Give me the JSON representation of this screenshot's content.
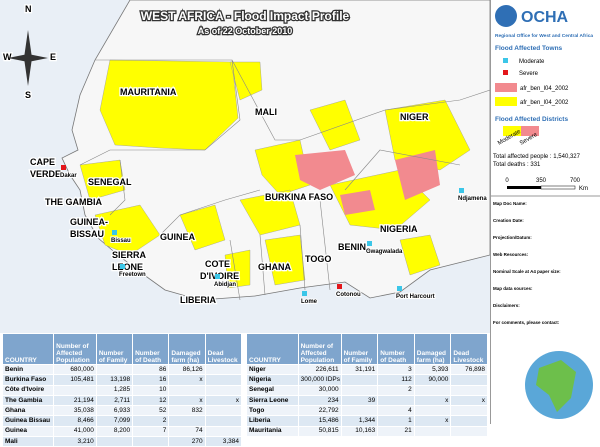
{
  "header": {
    "title": "WEST AFRICA",
    "subtitle": " - Flood Impact Profile",
    "date": "As of 22 October 2010"
  },
  "logo": {
    "name": "OCHA",
    "office": "Regional Office for West and Central Africa"
  },
  "legend": {
    "towns_title": "Flood Affected Towns",
    "moderate": "Moderate",
    "severe": "Severe",
    "layer1": "afr_ben_l04_2002",
    "layer2": "afr_ben_l04_2002",
    "districts_title": "Flood Affected Districts",
    "district_moderate": "Moderate",
    "district_severe": "Severe"
  },
  "totals": {
    "people": "Total affected people : 1,540,327",
    "deaths": "Total deaths : 331"
  },
  "scale": {
    "ticks": [
      "0",
      "350",
      "700"
    ],
    "unit": "Km"
  },
  "notes": [
    "Map Doc Name:",
    "Creation Date:",
    "Projection/Datum:",
    "Web Resources:",
    "Nominal Scale at A4 paper size:",
    "Map data sources:",
    "Disclaimers:",
    "For comments, please contact:"
  ],
  "compass": {
    "n": "N",
    "s": "S",
    "e": "E",
    "w": "W"
  },
  "countries": [
    "MAURITANIA",
    "MALI",
    "NIGER",
    "CAPE",
    "VERDE",
    "SENEGAL",
    "THE GAMBIA",
    "GUINEA-",
    "BISSAU",
    "GUINEA",
    "SIERRA",
    "LEONE",
    "LIBERIA",
    "COTE",
    "D'IVOIRE",
    "BURKINA FASO",
    "GHANA",
    "TOGO",
    "BENIN",
    "NIGERIA"
  ],
  "towns": [
    "Dakar",
    "Bissau",
    "Freetown",
    "Abidjan",
    "Lome",
    "Cotonou",
    "Port Harcourt",
    "Gwagwalada",
    "Ndjamena"
  ],
  "table": {
    "headers": [
      "COUNTRY",
      "Number of Affected Population",
      "Number of Family",
      "Number of Death",
      "Damaged farm (ha)",
      "Dead Livestock"
    ],
    "left": [
      [
        "Benin",
        "680,000",
        null,
        "86",
        "86,126",
        null
      ],
      [
        "Burkina Faso",
        "105,481",
        "13,198",
        "16",
        "x",
        null
      ],
      [
        "Côte d'Ivoire",
        null,
        "1,285",
        "10",
        null,
        null
      ],
      [
        "The Gambia",
        "21,194",
        "2,711",
        "12",
        "x",
        "x"
      ],
      [
        "Ghana",
        "35,038",
        "6,933",
        "52",
        "832",
        null
      ],
      [
        "Guinea Bissau",
        "8,466",
        "7,099",
        "2",
        null,
        null
      ],
      [
        "Guinea",
        "41,000",
        "8,200",
        "7",
        "74",
        null
      ],
      [
        "Mali",
        "3,210",
        null,
        null,
        "270",
        "3,384"
      ]
    ],
    "right": [
      [
        "Niger",
        "226,611",
        "31,191",
        "3",
        "5,393",
        "76,898"
      ],
      [
        "Nigeria",
        "300,000 IDPs",
        null,
        "112",
        "90,000",
        null
      ],
      [
        "Senegal",
        "30,000",
        null,
        "2",
        null,
        null
      ],
      [
        "Sierra Leone",
        "234",
        "39",
        null,
        "x",
        "x"
      ],
      [
        "Togo",
        "22,792",
        null,
        "4",
        null,
        null
      ],
      [
        "Liberia",
        "15,486",
        "1,344",
        "1",
        "x",
        null
      ],
      [
        "Mauritania",
        "50,815",
        "10,163",
        "21",
        null,
        null
      ]
    ]
  }
}
